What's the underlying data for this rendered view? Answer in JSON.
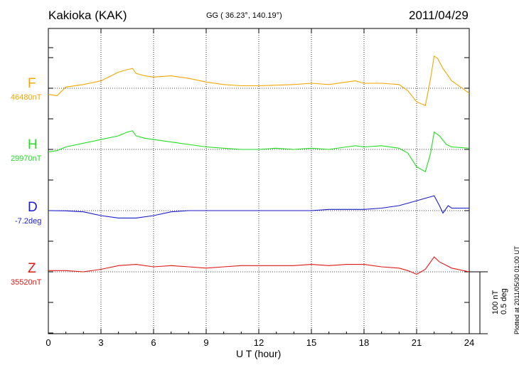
{
  "header": {
    "station": "Kakioka (KAK)",
    "coords": "GG ( 36.23°, 140.19°)",
    "date": "2011/04/29"
  },
  "components": [
    {
      "letter": "F",
      "base": "46480nT",
      "color": "#f0a800"
    },
    {
      "letter": "H",
      "base": "29970nT",
      "color": "#22dd22"
    },
    {
      "letter": "D",
      "base": "-7.2deg",
      "color": "#1a1acc"
    },
    {
      "letter": "Z",
      "base": "35520nT",
      "color": "#e01818"
    }
  ],
  "scale_label": [
    "100 nT",
    "0.5 deg"
  ],
  "plotted_note": "Plotted at 2011/05/30 01:00 UT",
  "chart_data": {
    "type": "line",
    "title": "Kakioka (KAK)",
    "xlabel": "U T (hour)",
    "xlim": [
      0,
      24
    ],
    "xticks": [
      0,
      3,
      6,
      9,
      12,
      15,
      18,
      21,
      24
    ],
    "scale_bar": {
      "nT": 100,
      "deg": 0.5
    },
    "series": [
      {
        "name": "F",
        "baseline": "46480nT",
        "unit": "nT",
        "x": [
          0,
          0.5,
          1,
          2,
          3,
          4,
          4.5,
          4.8,
          5,
          5.5,
          6,
          7,
          8,
          9,
          10,
          11,
          12,
          13,
          14,
          15,
          16,
          17,
          17.5,
          18,
          19,
          20,
          20.5,
          21,
          21.5,
          21.8,
          22,
          22.2,
          22.5,
          23,
          24
        ],
        "values": [
          -10,
          -12,
          2,
          6,
          12,
          26,
          30,
          32,
          24,
          20,
          18,
          20,
          16,
          10,
          6,
          4,
          4,
          5,
          6,
          8,
          6,
          10,
          12,
          8,
          8,
          6,
          -4,
          -22,
          -28,
          16,
          52,
          48,
          32,
          12,
          -8
        ]
      },
      {
        "name": "H",
        "baseline": "29970nT",
        "unit": "nT",
        "x": [
          0,
          0.5,
          1,
          2,
          3,
          4,
          4.5,
          4.8,
          5,
          5.5,
          6,
          7,
          8,
          9,
          10,
          11,
          12,
          13,
          14,
          15,
          16,
          17,
          17.5,
          18,
          19,
          20,
          20.5,
          21,
          21.5,
          21.8,
          22,
          22.3,
          22.7,
          23,
          24
        ],
        "values": [
          -4,
          -2,
          4,
          10,
          16,
          22,
          28,
          30,
          22,
          18,
          16,
          12,
          8,
          4,
          2,
          0,
          0,
          2,
          0,
          2,
          0,
          4,
          6,
          4,
          6,
          2,
          -6,
          -28,
          -36,
          -6,
          28,
          22,
          8,
          4,
          2
        ]
      },
      {
        "name": "D",
        "baseline": "-7.2deg",
        "unit": "deg",
        "x": [
          0,
          1,
          2,
          3,
          4,
          5,
          6,
          7,
          8,
          9,
          10,
          11,
          12,
          13,
          14,
          15,
          16,
          17,
          18,
          19,
          20,
          21,
          21.5,
          22,
          22.3,
          22.5,
          22.8,
          23,
          24
        ],
        "values": [
          0,
          -0.2,
          -1,
          -4,
          -6,
          -6,
          -4,
          -1,
          0,
          0,
          0,
          0,
          0,
          0,
          0,
          0,
          1,
          1,
          1,
          2,
          4,
          8,
          10,
          12,
          4,
          -2,
          4,
          2,
          2
        ]
      },
      {
        "name": "Z",
        "baseline": "35520nT",
        "unit": "nT",
        "x": [
          0,
          1,
          2,
          3,
          4,
          5,
          6,
          7,
          8,
          9,
          10,
          11,
          12,
          13,
          14,
          15,
          16,
          17,
          18,
          19,
          20,
          20.5,
          21,
          21.5,
          22,
          22.3,
          23,
          24
        ],
        "values": [
          2,
          2,
          0,
          4,
          10,
          12,
          8,
          10,
          8,
          6,
          8,
          10,
          10,
          10,
          10,
          12,
          10,
          12,
          12,
          8,
          6,
          2,
          -4,
          4,
          24,
          16,
          6,
          0
        ]
      }
    ]
  }
}
